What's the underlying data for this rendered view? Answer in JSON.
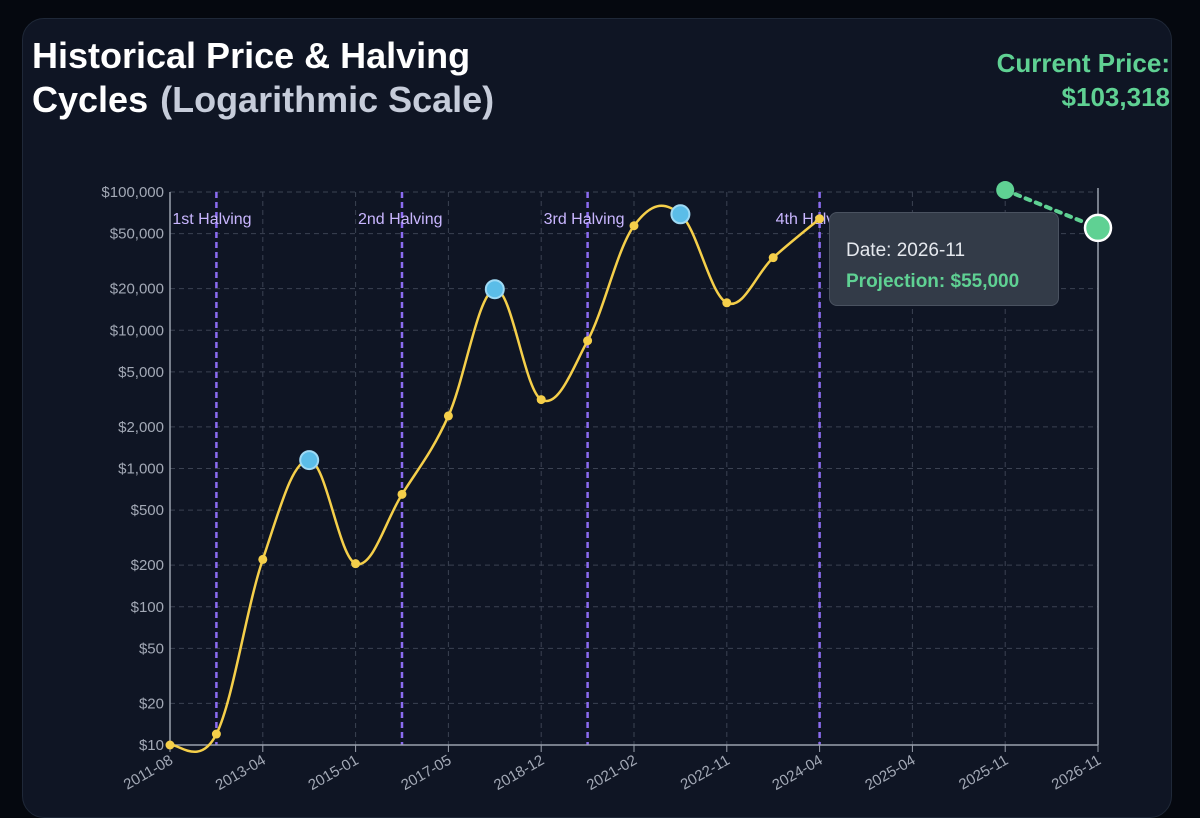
{
  "header": {
    "title": "Historical Price & Halving Cycles",
    "subtitle": "(Logarithmic Scale)",
    "current_price_label": "Current Price:",
    "current_price_value": "$103,318"
  },
  "tooltip": {
    "date_text": "Date: 2026-11",
    "projection_text": "Projection: $55,000"
  },
  "colors": {
    "price_line": "#f5cf4a",
    "peak_point": "#5bbde8",
    "halving_line": "#8b6cf0",
    "halving_label": "#c9b6ff",
    "projection": "#5fd193",
    "grid": "#3b4252",
    "axis_text": "#a3a9b6"
  },
  "chart_data": {
    "type": "line",
    "title": "Historical Price & Halving Cycles (Logarithmic Scale)",
    "y_scale": "log",
    "ylim": [
      10,
      100000
    ],
    "grid": true,
    "x_ticks": [
      "2011-08",
      "2013-04",
      "2015-01",
      "2017-05",
      "2018-12",
      "2021-02",
      "2022-11",
      "2024-04",
      "2025-04",
      "2025-11",
      "2026-11"
    ],
    "y_ticks": [
      {
        "value": 10,
        "label": "$10"
      },
      {
        "value": 20,
        "label": "$20"
      },
      {
        "value": 50,
        "label": "$50"
      },
      {
        "value": 100,
        "label": "$100"
      },
      {
        "value": 200,
        "label": "$200"
      },
      {
        "value": 500,
        "label": "$500"
      },
      {
        "value": 1000,
        "label": "$1,000"
      },
      {
        "value": 2000,
        "label": "$2,000"
      },
      {
        "value": 5000,
        "label": "$5,000"
      },
      {
        "value": 10000,
        "label": "$10,000"
      },
      {
        "value": 20000,
        "label": "$20,000"
      },
      {
        "value": 50000,
        "label": "$50,000"
      },
      {
        "value": 100000,
        "label": "$100,000"
      }
    ],
    "series": [
      {
        "values": [
          {
            "x": 0,
            "y": 10
          },
          {
            "x": 0.5,
            "y": 12
          },
          {
            "x": 1,
            "y": 220
          },
          {
            "x": 1.5,
            "y": 1150,
            "peak": true
          },
          {
            "x": 2,
            "y": 205
          },
          {
            "x": 2.5,
            "y": 650
          },
          {
            "x": 3,
            "y": 2400
          },
          {
            "x": 3.5,
            "y": 19800,
            "peak": true
          },
          {
            "x": 4,
            "y": 3150
          },
          {
            "x": 4.5,
            "y": 8400
          },
          {
            "x": 5,
            "y": 57000
          },
          {
            "x": 5.5,
            "y": 69000,
            "peak": true
          },
          {
            "x": 6,
            "y": 15800
          },
          {
            "x": 6.5,
            "y": 33500
          },
          {
            "x": 7,
            "y": 64000
          }
        ]
      }
    ],
    "projection": {
      "values": [
        {
          "x": 9,
          "y": 103318
        },
        {
          "x": 10,
          "y": 55000
        }
      ]
    },
    "halvings": [
      {
        "label": "1st Halving",
        "x": 0.5
      },
      {
        "label": "2nd Halving",
        "x": 2.5
      },
      {
        "label": "3rd Halving",
        "x": 4.5
      },
      {
        "label": "4th Halving",
        "x": 7
      }
    ]
  }
}
